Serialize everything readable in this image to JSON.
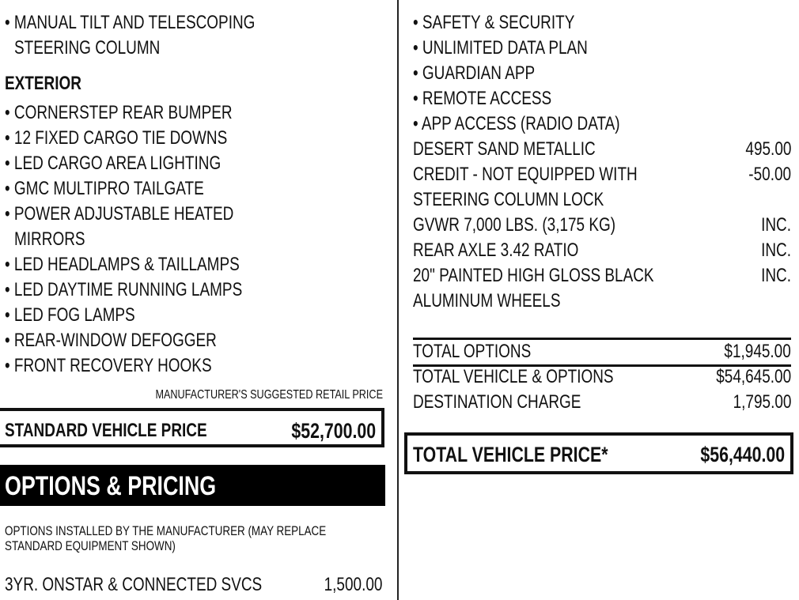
{
  "left": {
    "top_items": [
      "• MANUAL TILT AND TELESCOPING",
      "STEERING COLUMN"
    ],
    "exterior_heading": "EXTERIOR",
    "exterior_items": [
      "• CORNERSTEP REAR BUMPER",
      "• 12 FIXED CARGO TIE DOWNS",
      "• LED CARGO AREA LIGHTING",
      "• GMC MULTIPRO TAILGATE",
      "• POWER ADJUSTABLE HEATED",
      "MIRRORS",
      "• LED HEADLAMPS & TAILLAMPS",
      "• LED DAYTIME RUNNING LAMPS",
      "• LED FOG LAMPS",
      "• REAR-WINDOW DEFOGGER",
      "• FRONT RECOVERY HOOKS"
    ],
    "msrp_label": "MANUFACTURER'S SUGGESTED RETAIL PRICE",
    "standard_price_label": "STANDARD VEHICLE PRICE",
    "standard_price_value": "$52,700.00",
    "options_heading": "OPTIONS & PRICING",
    "options_note": [
      "OPTIONS INSTALLED BY THE MANUFACTURER (MAY REPLACE",
      "STANDARD EQUIPMENT SHOWN)"
    ],
    "first_option": {
      "label": "3YR. ONSTAR & CONNECTED SVCS",
      "price": "1,500.00"
    }
  },
  "right": {
    "bullets": [
      "• SAFETY & SECURITY",
      "• UNLIMITED DATA PLAN",
      "• GUARDIAN APP",
      "• REMOTE ACCESS",
      "• APP ACCESS (RADIO DATA)"
    ],
    "options": [
      {
        "label": "DESERT SAND METALLIC",
        "price": "495.00"
      },
      {
        "label": "CREDIT - NOT EQUIPPED WITH",
        "price": "-50.00"
      },
      {
        "label": "STEERING COLUMN LOCK",
        "price": ""
      },
      {
        "label": "GVWR 7,000 LBS. (3,175 KG)",
        "price": "INC."
      },
      {
        "label": "REAR AXLE 3.42 RATIO",
        "price": "INC."
      },
      {
        "label": "20\" PAINTED HIGH GLOSS BLACK",
        "price": "INC."
      },
      {
        "label": "ALUMINUM WHEELS",
        "price": ""
      }
    ],
    "totals": [
      {
        "label": "TOTAL OPTIONS",
        "value": "$1,945.00"
      },
      {
        "label": "TOTAL VEHICLE & OPTIONS",
        "value": "$54,645.00"
      },
      {
        "label": "DESTINATION CHARGE",
        "value": "1,795.00"
      }
    ],
    "total_price_label": "TOTAL VEHICLE PRICE*",
    "total_price_value": "$56,440.00"
  }
}
